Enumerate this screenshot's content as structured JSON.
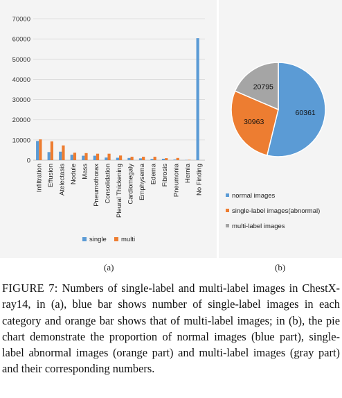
{
  "chart_data": [
    {
      "type": "bar",
      "categories": [
        "Infiltration",
        "Effusion",
        "Atelectasis",
        "Nodule",
        "Mass",
        "Pneumothorax",
        "Consolidation",
        "Pleural Thickening",
        "Cardiomegaly",
        "Emphysema",
        "Edema",
        "Fibrosis",
        "Pneumonia",
        "Hernia",
        "No Finding"
      ],
      "series": [
        {
          "name": "single",
          "color": "#5b9bd5",
          "values": [
            9500,
            4000,
            4200,
            2700,
            2200,
            2200,
            1300,
            1200,
            1100,
            900,
            600,
            700,
            300,
            100,
            60361
          ]
        },
        {
          "name": "multi",
          "color": "#ed7d31",
          "values": [
            10300,
            9300,
            7300,
            3700,
            3500,
            3200,
            3200,
            2300,
            1700,
            1700,
            1700,
            1000,
            1100,
            200,
            0
          ]
        }
      ],
      "yticks": [
        "0",
        "10000",
        "20000",
        "30000",
        "40000",
        "50000",
        "60000",
        "70000"
      ],
      "ylim": [
        0,
        70000
      ],
      "grid": true,
      "legend": "bottom"
    },
    {
      "type": "pie",
      "slices": [
        {
          "label": "normal images",
          "value": 60361,
          "value_label": "60361",
          "color": "#5b9bd5"
        },
        {
          "label": "single-label images(abnormal)",
          "value": 30963,
          "value_label": "30963",
          "color": "#ed7d31"
        },
        {
          "label": "multi-label images",
          "value": 20795,
          "value_label": "20795",
          "color": "#a5a5a5"
        }
      ],
      "legend": "bottom"
    }
  ],
  "subfigure_labels": {
    "a": "(a)",
    "b": "(b)"
  },
  "caption": {
    "number": "FIGURE 7:",
    "text": " Numbers of single-label and multi-label images in ChestX-ray14, in (a), blue bar shows number of single-label images in each category and orange bar shows that of multi-label images; in (b), the pie chart demonstrate the proportion of normal images (blue part), single-label abnormal images (orange part) and multi-label images (gray part) and their corresponding numbers."
  }
}
